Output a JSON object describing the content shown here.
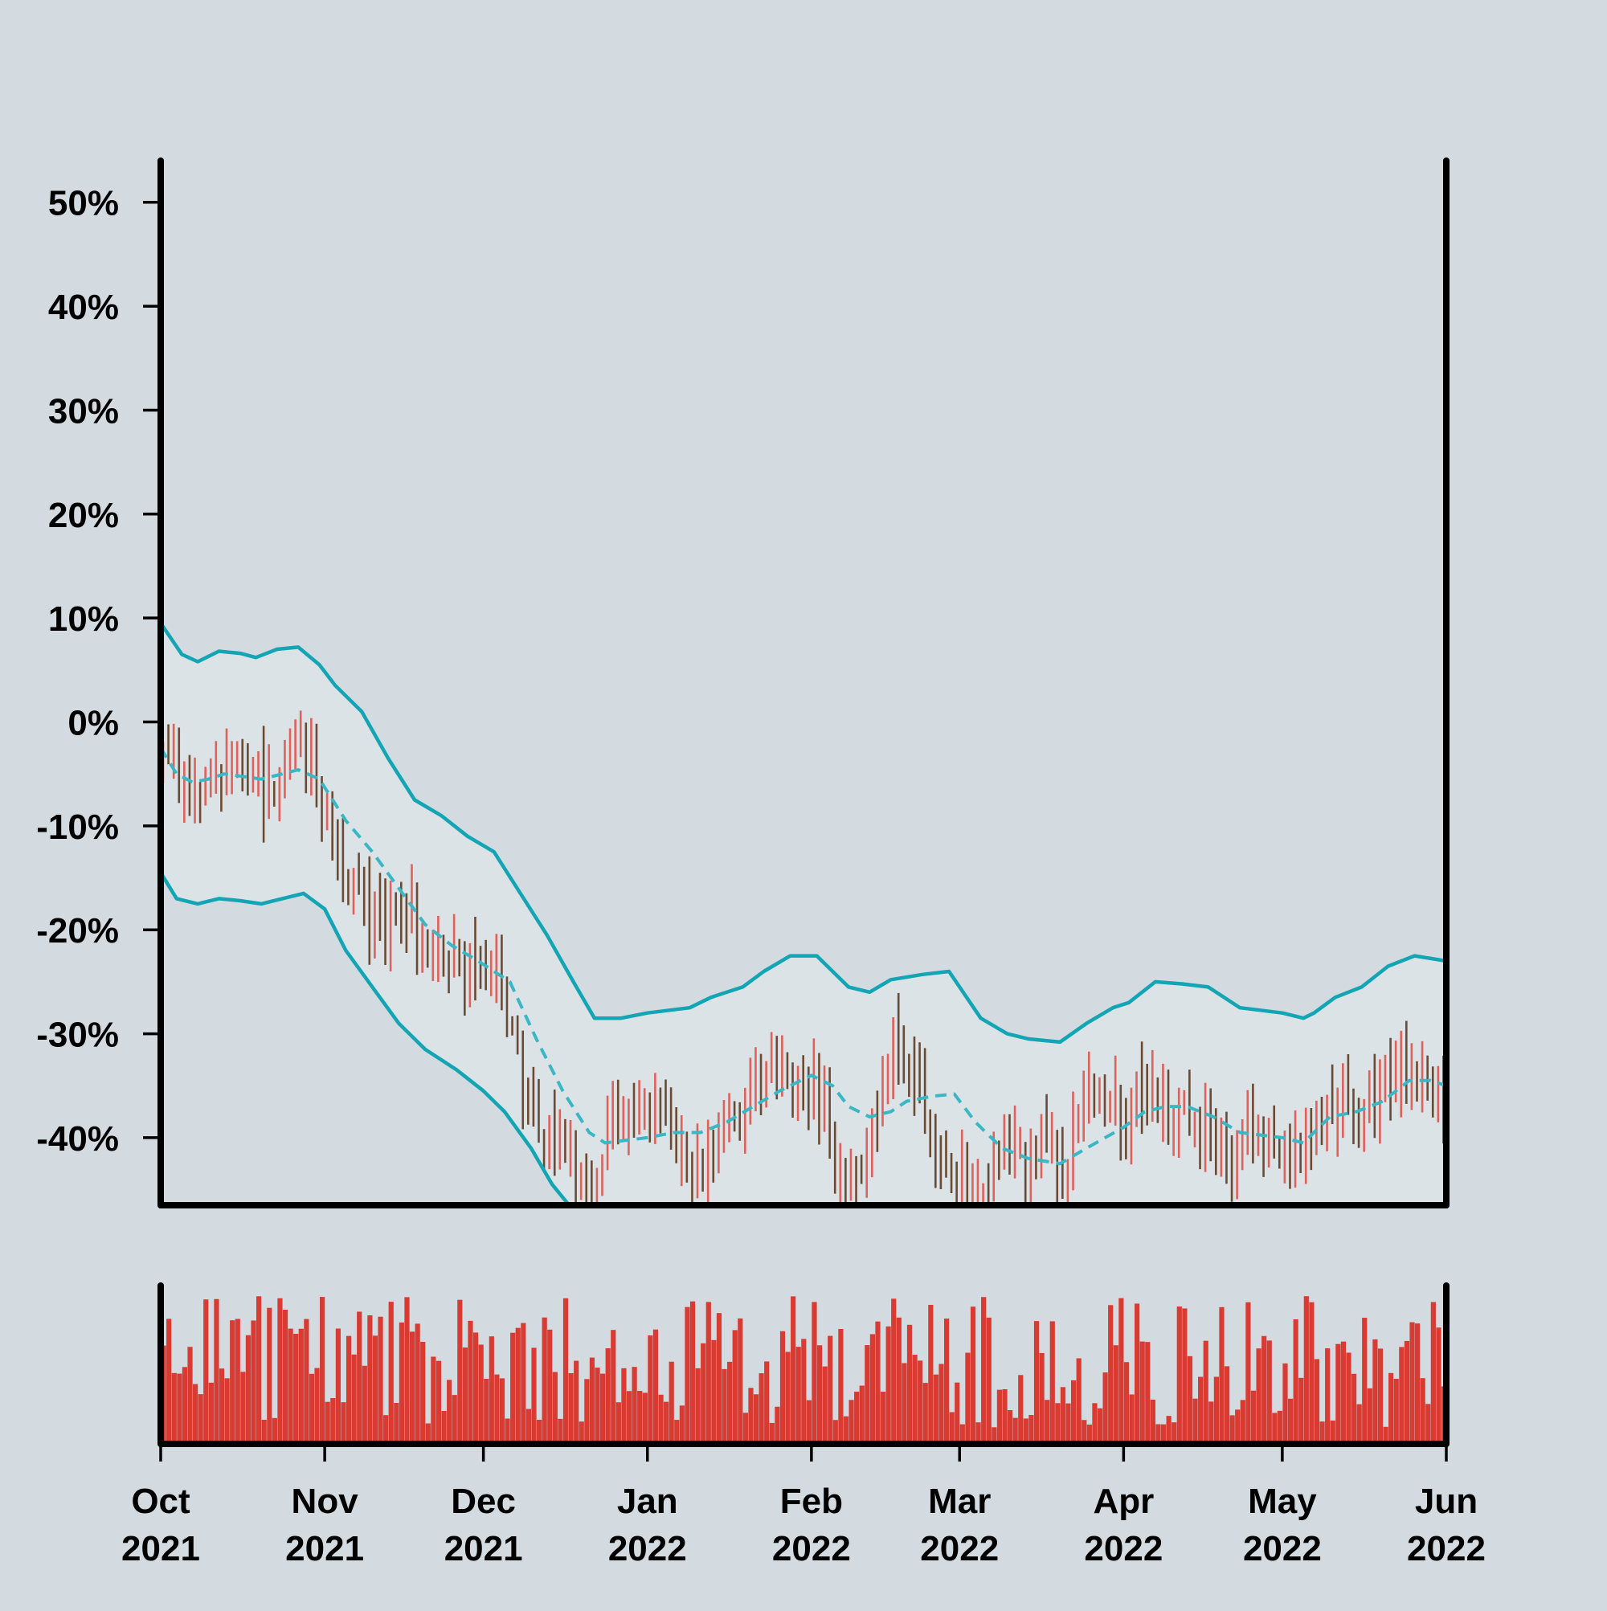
{
  "colors": {
    "background": "#d3dbe0",
    "band_fill": "#dbe3e7",
    "band_line": "#13a5b4",
    "mid_line": "#3bb6c4",
    "bar_up": "#e0605a",
    "bar_down": "#6b4a33",
    "volume": "#d93a32",
    "axis": "#000000"
  },
  "chart_data": {
    "type": "ohlc",
    "panels": [
      "price",
      "volume"
    ],
    "y_axis": {
      "ticks": [
        50,
        40,
        30,
        20,
        10,
        0,
        -10,
        -20,
        -30,
        -40
      ],
      "tick_labels": [
        "50%",
        "40%",
        "30%",
        "20%",
        "10%",
        "0%",
        "-10%",
        "-20%",
        "-30%",
        "-40%"
      ],
      "ylim": [
        -46.5,
        54
      ],
      "unit": "%"
    },
    "x_axis": {
      "type": "date",
      "range": [
        "2021-10-01",
        "2022-06-01"
      ],
      "ticks": [
        "2021-10-01",
        "2021-11-01",
        "2021-12-01",
        "2022-01-01",
        "2022-02-01",
        "2022-03-01",
        "2022-04-01",
        "2022-05-01",
        "2022-06-01"
      ],
      "tick_labels": [
        [
          "Oct",
          "2021"
        ],
        [
          "Nov",
          "2021"
        ],
        [
          "Dec",
          "2021"
        ],
        [
          "Jan",
          "2022"
        ],
        [
          "Feb",
          "2022"
        ],
        [
          "Mar",
          "2022"
        ],
        [
          "Apr",
          "2022"
        ],
        [
          "May",
          "2022"
        ],
        [
          "Jun",
          "2022"
        ]
      ]
    },
    "close_path": [
      [
        "2021-10-01",
        -3
      ],
      [
        "2021-10-05",
        -6
      ],
      [
        "2021-10-08",
        -7
      ],
      [
        "2021-10-12",
        -5
      ],
      [
        "2021-10-16",
        -4
      ],
      [
        "2021-10-20",
        -7
      ],
      [
        "2021-10-24",
        -4
      ],
      [
        "2021-10-28",
        -3
      ],
      [
        "2021-11-01",
        -9
      ],
      [
        "2021-11-04",
        -15
      ],
      [
        "2021-11-08",
        -18
      ],
      [
        "2021-11-12",
        -20
      ],
      [
        "2021-11-16",
        -18
      ],
      [
        "2021-11-20",
        -22
      ],
      [
        "2021-11-24",
        -23
      ],
      [
        "2021-11-28",
        -24
      ],
      [
        "2021-12-01",
        -24
      ],
      [
        "2021-12-04",
        -26
      ],
      [
        "2021-12-07",
        -32
      ],
      [
        "2021-12-10",
        -38
      ],
      [
        "2021-12-13",
        -41
      ],
      [
        "2021-12-16",
        -43
      ],
      [
        "2021-12-19",
        -45
      ],
      [
        "2021-12-22",
        -44
      ],
      [
        "2021-12-25",
        -38
      ],
      [
        "2021-12-28",
        -36
      ],
      [
        "2022-01-01",
        -37
      ],
      [
        "2022-01-05",
        -40
      ],
      [
        "2022-01-09",
        -44
      ],
      [
        "2022-01-13",
        -41
      ],
      [
        "2022-01-17",
        -37
      ],
      [
        "2022-01-21",
        -35
      ],
      [
        "2022-01-25",
        -33
      ],
      [
        "2022-01-29",
        -35
      ],
      [
        "2022-02-01",
        -35
      ],
      [
        "2022-02-04",
        -40
      ],
      [
        "2022-02-07",
        -44
      ],
      [
        "2022-02-10",
        -42
      ],
      [
        "2022-02-13",
        -37
      ],
      [
        "2022-02-16",
        -31
      ],
      [
        "2022-02-19",
        -33
      ],
      [
        "2022-02-22",
        -38
      ],
      [
        "2022-02-25",
        -42
      ],
      [
        "2022-03-01",
        -44
      ],
      [
        "2022-03-05",
        -45
      ],
      [
        "2022-03-09",
        -40
      ],
      [
        "2022-03-13",
        -43
      ],
      [
        "2022-03-17",
        -40
      ],
      [
        "2022-03-20",
        -44
      ],
      [
        "2022-03-24",
        -36
      ],
      [
        "2022-03-28",
        -37
      ],
      [
        "2022-04-01",
        -38
      ],
      [
        "2022-04-05",
        -36
      ],
      [
        "2022-04-09",
        -37
      ],
      [
        "2022-04-13",
        -38
      ],
      [
        "2022-04-17",
        -39
      ],
      [
        "2022-04-21",
        -43
      ],
      [
        "2022-04-25",
        -39
      ],
      [
        "2022-04-29",
        -40
      ],
      [
        "2022-05-03",
        -41
      ],
      [
        "2022-05-07",
        -39
      ],
      [
        "2022-05-11",
        -35
      ],
      [
        "2022-05-15",
        -38
      ],
      [
        "2022-05-19",
        -35
      ],
      [
        "2022-05-23",
        -33
      ],
      [
        "2022-05-27",
        -35
      ],
      [
        "2022-06-01",
        -39
      ]
    ],
    "bollinger": {
      "upper": [
        [
          "2021-10-01",
          9.5
        ],
        [
          "2021-10-05",
          6.5
        ],
        [
          "2021-10-08",
          5.8
        ],
        [
          "2021-10-12",
          6.8
        ],
        [
          "2021-10-16",
          6.6
        ],
        [
          "2021-10-19",
          6.2
        ],
        [
          "2021-10-23",
          7.0
        ],
        [
          "2021-10-27",
          7.2
        ],
        [
          "2021-10-31",
          5.5
        ],
        [
          "2021-11-03",
          3.5
        ],
        [
          "2021-11-08",
          1.0
        ],
        [
          "2021-11-13",
          -3.5
        ],
        [
          "2021-11-18",
          -7.5
        ],
        [
          "2021-11-23",
          -9.0
        ],
        [
          "2021-11-28",
          -11.0
        ],
        [
          "2021-12-03",
          -12.5
        ],
        [
          "2021-12-08",
          -16.5
        ],
        [
          "2021-12-13",
          -20.5
        ],
        [
          "2021-12-18",
          -25.0
        ],
        [
          "2021-12-22",
          -28.5
        ],
        [
          "2021-12-27",
          -28.5
        ],
        [
          "2022-01-01",
          -28.0
        ],
        [
          "2022-01-09",
          -27.5
        ],
        [
          "2022-01-13",
          -26.5
        ],
        [
          "2022-01-19",
          -25.5
        ],
        [
          "2022-01-23",
          -24.0
        ],
        [
          "2022-01-28",
          -22.5
        ],
        [
          "2022-02-02",
          -22.5
        ],
        [
          "2022-02-08",
          -25.5
        ],
        [
          "2022-02-12",
          -26.0
        ],
        [
          "2022-02-16",
          -24.8
        ],
        [
          "2022-02-22",
          -24.3
        ],
        [
          "2022-02-27",
          -24.0
        ],
        [
          "2022-03-05",
          -28.5
        ],
        [
          "2022-03-10",
          -30.0
        ],
        [
          "2022-03-14",
          -30.5
        ],
        [
          "2022-03-20",
          -30.8
        ],
        [
          "2022-03-25",
          -29.0
        ],
        [
          "2022-03-30",
          -27.5
        ],
        [
          "2022-04-02",
          -27.0
        ],
        [
          "2022-04-07",
          -25.0
        ],
        [
          "2022-04-12",
          -25.2
        ],
        [
          "2022-04-17",
          -25.5
        ],
        [
          "2022-04-23",
          -27.5
        ],
        [
          "2022-05-01",
          -28.0
        ],
        [
          "2022-05-05",
          -28.5
        ],
        [
          "2022-05-07",
          -28.0
        ],
        [
          "2022-05-11",
          -26.5
        ],
        [
          "2022-05-16",
          -25.5
        ],
        [
          "2022-05-21",
          -23.5
        ],
        [
          "2022-05-26",
          -22.5
        ],
        [
          "2022-06-01",
          -23.0
        ]
      ],
      "middle": [
        [
          "2021-10-01",
          -2.5
        ],
        [
          "2021-10-04",
          -5.0
        ],
        [
          "2021-10-07",
          -5.8
        ],
        [
          "2021-10-10",
          -5.5
        ],
        [
          "2021-10-13",
          -5.0
        ],
        [
          "2021-10-16",
          -5.2
        ],
        [
          "2021-10-20",
          -5.5
        ],
        [
          "2021-10-24",
          -5.0
        ],
        [
          "2021-10-27",
          -4.6
        ],
        [
          "2021-10-31",
          -5.5
        ],
        [
          "2021-11-05",
          -9.5
        ],
        [
          "2021-11-10",
          -12.5
        ],
        [
          "2021-11-15",
          -16.0
        ],
        [
          "2021-11-20",
          -19.5
        ],
        [
          "2021-11-25",
          -21.5
        ],
        [
          "2021-11-30",
          -23.0
        ],
        [
          "2021-12-06",
          -25.0
        ],
        [
          "2021-12-11",
          -30.5
        ],
        [
          "2021-12-16",
          -35.5
        ],
        [
          "2021-12-21",
          -39.5
        ],
        [
          "2021-12-24",
          -40.5
        ],
        [
          "2022-01-01",
          -40.0
        ],
        [
          "2022-01-06",
          -39.5
        ],
        [
          "2022-01-11",
          -39.5
        ],
        [
          "2022-01-16",
          -38.5
        ],
        [
          "2022-01-21",
          -37.0
        ],
        [
          "2022-01-26",
          -35.5
        ],
        [
          "2022-02-01",
          -34.0
        ],
        [
          "2022-02-05",
          -35.0
        ],
        [
          "2022-02-08",
          -37.0
        ],
        [
          "2022-02-12",
          -38.0
        ],
        [
          "2022-02-16",
          -37.5
        ],
        [
          "2022-02-19",
          -36.5
        ],
        [
          "2022-02-24",
          -36.0
        ],
        [
          "2022-02-28",
          -35.8
        ],
        [
          "2022-03-04",
          -38.5
        ],
        [
          "2022-03-09",
          -41.0
        ],
        [
          "2022-03-14",
          -42.0
        ],
        [
          "2022-03-20",
          -42.5
        ],
        [
          "2022-03-25",
          -41.0
        ],
        [
          "2022-04-01",
          -39.0
        ],
        [
          "2022-04-05",
          -37.5
        ],
        [
          "2022-04-09",
          -37.0
        ],
        [
          "2022-04-13",
          -37.0
        ],
        [
          "2022-04-18",
          -38.0
        ],
        [
          "2022-04-23",
          -39.5
        ],
        [
          "2022-05-01",
          -40.0
        ],
        [
          "2022-05-05",
          -40.5
        ],
        [
          "2022-05-10",
          -38.0
        ],
        [
          "2022-05-15",
          -37.5
        ],
        [
          "2022-05-20",
          -36.5
        ],
        [
          "2022-05-25",
          -34.5
        ],
        [
          "2022-05-29",
          -34.5
        ],
        [
          "2022-06-01",
          -35.0
        ]
      ],
      "lower": [
        [
          "2021-10-01",
          -14.5
        ],
        [
          "2021-10-04",
          -17.0
        ],
        [
          "2021-10-08",
          -17.5
        ],
        [
          "2021-10-12",
          -17.0
        ],
        [
          "2021-10-16",
          -17.2
        ],
        [
          "2021-10-20",
          -17.5
        ],
        [
          "2021-10-24",
          -17.0
        ],
        [
          "2021-10-28",
          -16.5
        ],
        [
          "2021-11-01",
          -18.0
        ],
        [
          "2021-11-05",
          -22.0
        ],
        [
          "2021-11-10",
          -25.5
        ],
        [
          "2021-11-15",
          -29.0
        ],
        [
          "2021-11-20",
          -31.5
        ],
        [
          "2021-11-26",
          -33.5
        ],
        [
          "2021-12-01",
          -35.5
        ],
        [
          "2021-12-05",
          -37.5
        ],
        [
          "2021-12-10",
          -41.0
        ],
        [
          "2021-12-14",
          -44.5
        ],
        [
          "2021-12-18",
          -47.0
        ]
      ]
    }
  }
}
